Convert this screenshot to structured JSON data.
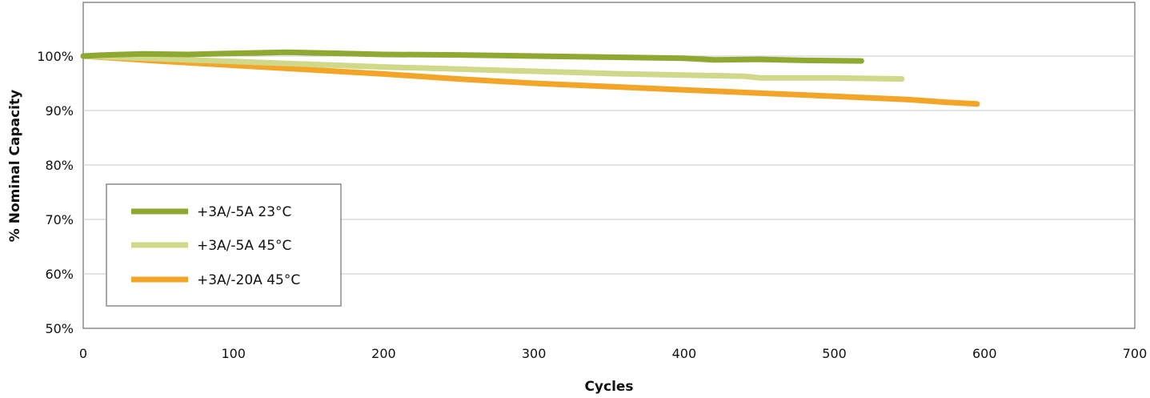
{
  "chart_data": {
    "type": "line",
    "title": "",
    "xlabel": "Cycles",
    "ylabel": "% Nominal Capacity",
    "xlim": [
      0,
      700
    ],
    "ylim": [
      50,
      100
    ],
    "x_ticks": [
      0,
      100,
      200,
      300,
      400,
      500,
      600,
      700
    ],
    "x_tick_labels": [
      "0",
      "100",
      "200",
      "300",
      "400",
      "500",
      "600",
      "700"
    ],
    "y_ticks": [
      50,
      60,
      70,
      80,
      90,
      100
    ],
    "y_tick_labels": [
      "50%",
      "60%",
      "70%",
      "80%",
      "90%",
      "100%"
    ],
    "grid": "horizontal",
    "legend_position": "bottom-left",
    "series": [
      {
        "name": "+3A/-5A 23°C",
        "color": "#8ea832",
        "x": [
          0,
          15,
          40,
          70,
          100,
          135,
          170,
          200,
          250,
          300,
          350,
          400,
          420,
          450,
          480,
          518
        ],
        "y": [
          100,
          100.2,
          100.4,
          100.3,
          100.5,
          100.7,
          100.5,
          100.3,
          100.2,
          100,
          99.8,
          99.6,
          99.3,
          99.4,
          99.2,
          99.1
        ]
      },
      {
        "name": "+3A/-5A 45°C",
        "color": "#d0d88a",
        "x": [
          0,
          50,
          100,
          150,
          200,
          250,
          300,
          350,
          400,
          440,
          450,
          500,
          545
        ],
        "y": [
          100,
          99.5,
          99,
          98.5,
          98,
          97.6,
          97.2,
          96.8,
          96.5,
          96.3,
          96.0,
          96,
          95.8
        ]
      },
      {
        "name": "+3A/-20A 45°C",
        "color": "#f3a528",
        "x": [
          0,
          50,
          100,
          150,
          200,
          250,
          300,
          350,
          400,
          450,
          500,
          550,
          575,
          595
        ],
        "y": [
          100,
          99.1,
          98.3,
          97.5,
          96.7,
          95.8,
          95.0,
          94.4,
          93.8,
          93.2,
          92.6,
          92.0,
          91.5,
          91.2
        ]
      }
    ]
  }
}
